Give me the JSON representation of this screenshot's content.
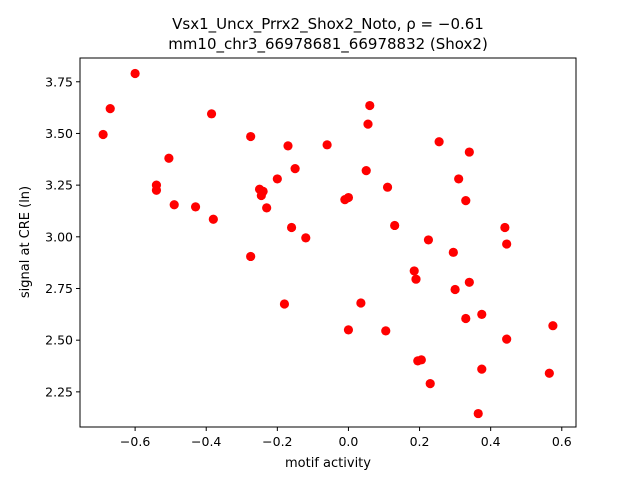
{
  "chart_data": {
    "type": "scatter",
    "title_line1": "Vsx1_Uncx_Prrx2_Shox2_Noto, ρ = −0.61",
    "title_line2": "mm10_chr3_66978681_66978832 (Shox2)",
    "xlabel": "motif activity",
    "ylabel": "signal at CRE (ln)",
    "xlim": [
      -0.755,
      0.64
    ],
    "ylim": [
      2.08,
      3.865
    ],
    "xticks": [
      -0.6,
      -0.4,
      -0.2,
      0.0,
      0.2,
      0.4,
      0.6
    ],
    "xtick_labels": [
      "−0.6",
      "−0.4",
      "−0.2",
      "0.0",
      "0.2",
      "0.4",
      "0.6"
    ],
    "yticks": [
      2.25,
      2.5,
      2.75,
      3.0,
      3.25,
      3.5,
      3.75
    ],
    "ytick_labels": [
      "2.25",
      "2.50",
      "2.75",
      "3.00",
      "3.25",
      "3.50",
      "3.75"
    ],
    "grid": false,
    "marker_color": "#ff0000",
    "points": [
      {
        "x": -0.69,
        "y": 3.495
      },
      {
        "x": -0.67,
        "y": 3.62
      },
      {
        "x": -0.6,
        "y": 3.79
      },
      {
        "x": -0.505,
        "y": 3.38
      },
      {
        "x": -0.54,
        "y": 3.25
      },
      {
        "x": -0.54,
        "y": 3.225
      },
      {
        "x": -0.49,
        "y": 3.155
      },
      {
        "x": -0.43,
        "y": 3.145
      },
      {
        "x": -0.385,
        "y": 3.595
      },
      {
        "x": -0.38,
        "y": 3.085
      },
      {
        "x": -0.275,
        "y": 3.485
      },
      {
        "x": -0.275,
        "y": 2.905
      },
      {
        "x": -0.25,
        "y": 3.23
      },
      {
        "x": -0.245,
        "y": 3.2
      },
      {
        "x": -0.24,
        "y": 3.22
      },
      {
        "x": -0.23,
        "y": 3.14
      },
      {
        "x": -0.2,
        "y": 3.28
      },
      {
        "x": -0.17,
        "y": 3.44
      },
      {
        "x": -0.16,
        "y": 3.045
      },
      {
        "x": -0.15,
        "y": 3.33
      },
      {
        "x": -0.18,
        "y": 2.675
      },
      {
        "x": -0.12,
        "y": 2.995
      },
      {
        "x": -0.06,
        "y": 3.445
      },
      {
        "x": -0.01,
        "y": 3.18
      },
      {
        "x": 0.0,
        "y": 3.19
      },
      {
        "x": 0.0,
        "y": 2.55
      },
      {
        "x": 0.035,
        "y": 2.68
      },
      {
        "x": 0.05,
        "y": 3.32
      },
      {
        "x": 0.055,
        "y": 3.545
      },
      {
        "x": 0.06,
        "y": 3.635
      },
      {
        "x": 0.105,
        "y": 2.545
      },
      {
        "x": 0.11,
        "y": 3.24
      },
      {
        "x": 0.13,
        "y": 3.055
      },
      {
        "x": 0.185,
        "y": 2.835
      },
      {
        "x": 0.19,
        "y": 2.795
      },
      {
        "x": 0.195,
        "y": 2.4
      },
      {
        "x": 0.205,
        "y": 2.405
      },
      {
        "x": 0.225,
        "y": 2.985
      },
      {
        "x": 0.23,
        "y": 2.29
      },
      {
        "x": 0.255,
        "y": 3.46
      },
      {
        "x": 0.295,
        "y": 2.925
      },
      {
        "x": 0.3,
        "y": 2.745
      },
      {
        "x": 0.31,
        "y": 3.28
      },
      {
        "x": 0.33,
        "y": 2.605
      },
      {
        "x": 0.33,
        "y": 3.175
      },
      {
        "x": 0.34,
        "y": 3.41
      },
      {
        "x": 0.34,
        "y": 2.78
      },
      {
        "x": 0.365,
        "y": 2.145
      },
      {
        "x": 0.375,
        "y": 2.625
      },
      {
        "x": 0.375,
        "y": 2.36
      },
      {
        "x": 0.44,
        "y": 3.045
      },
      {
        "x": 0.445,
        "y": 2.965
      },
      {
        "x": 0.445,
        "y": 2.505
      },
      {
        "x": 0.565,
        "y": 2.34
      },
      {
        "x": 0.575,
        "y": 2.57
      }
    ]
  }
}
